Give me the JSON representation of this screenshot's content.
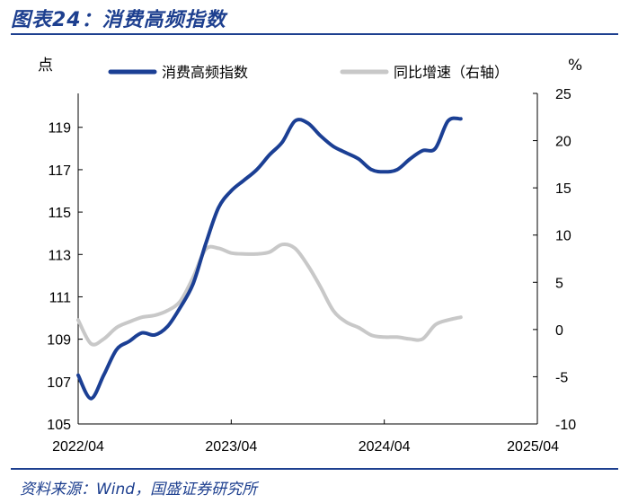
{
  "header": {
    "title": "图表24：消费高频指数"
  },
  "footer": {
    "source": "资料来源：Wind，国盛证券研究所"
  },
  "chart_data": {
    "type": "line",
    "y_left_unit": "点",
    "y_right_unit": "%",
    "y_left_range": [
      105,
      120.6
    ],
    "y_right_range": [
      -10,
      25
    ],
    "y_left_ticks": [
      "105",
      "107",
      "109",
      "111",
      "113",
      "115",
      "117",
      "119"
    ],
    "y_right_ticks": [
      "-10",
      "-5",
      "0",
      "5",
      "10",
      "15",
      "20",
      "25"
    ],
    "x_range": [
      "2022-04",
      "2025-04"
    ],
    "x_ticks": [
      "2022/04",
      "2023/04",
      "2024/04",
      "2025/04"
    ],
    "legend_position": "top",
    "series": [
      {
        "name": "消费高频指数",
        "axis": "left",
        "color": "#1b3f94",
        "points": [
          [
            "2022-04",
            107.3
          ],
          [
            "2022-05",
            106.2
          ],
          [
            "2022-06",
            107.3
          ],
          [
            "2022-07",
            108.5
          ],
          [
            "2022-08",
            108.9
          ],
          [
            "2022-09",
            109.3
          ],
          [
            "2022-10",
            109.2
          ],
          [
            "2022-11",
            109.6
          ],
          [
            "2022-12",
            110.5
          ],
          [
            "2023-01",
            111.6
          ],
          [
            "2023-02",
            113.5
          ],
          [
            "2023-03",
            115.2
          ],
          [
            "2023-04",
            116.0
          ],
          [
            "2023-05",
            116.5
          ],
          [
            "2023-06",
            117.0
          ],
          [
            "2023-07",
            117.7
          ],
          [
            "2023-08",
            118.3
          ],
          [
            "2023-09",
            119.3
          ],
          [
            "2023-10",
            119.2
          ],
          [
            "2023-11",
            118.6
          ],
          [
            "2023-12",
            118.1
          ],
          [
            "2024-01",
            117.8
          ],
          [
            "2024-02",
            117.5
          ],
          [
            "2024-03",
            117.0
          ],
          [
            "2024-04",
            116.9
          ],
          [
            "2024-05",
            117.0
          ],
          [
            "2024-06",
            117.5
          ],
          [
            "2024-07",
            117.9
          ],
          [
            "2024-08",
            118.0
          ],
          [
            "2024-09",
            119.3
          ],
          [
            "2024-10",
            119.4
          ]
        ]
      },
      {
        "name": "同比增速（右轴）",
        "axis": "right",
        "color": "#c8c8c8",
        "points": [
          [
            "2022-04",
            1.0
          ],
          [
            "2022-05",
            -1.5
          ],
          [
            "2022-06",
            -1.0
          ],
          [
            "2022-07",
            0.2
          ],
          [
            "2022-08",
            0.8
          ],
          [
            "2022-09",
            1.3
          ],
          [
            "2022-10",
            1.5
          ],
          [
            "2022-11",
            2.0
          ],
          [
            "2022-12",
            3.0
          ],
          [
            "2023-01",
            5.5
          ],
          [
            "2023-02",
            8.5
          ],
          [
            "2023-03",
            8.6
          ],
          [
            "2023-04",
            8.1
          ],
          [
            "2023-05",
            8.0
          ],
          [
            "2023-06",
            8.0
          ],
          [
            "2023-07",
            8.2
          ],
          [
            "2023-08",
            9.0
          ],
          [
            "2023-09",
            8.6
          ],
          [
            "2023-10",
            6.8
          ],
          [
            "2023-11",
            4.5
          ],
          [
            "2023-12",
            2.0
          ],
          [
            "2024-01",
            0.8
          ],
          [
            "2024-02",
            0.2
          ],
          [
            "2024-03",
            -0.6
          ],
          [
            "2024-04",
            -0.8
          ],
          [
            "2024-05",
            -0.8
          ],
          [
            "2024-06",
            -1.0
          ],
          [
            "2024-07",
            -1.0
          ],
          [
            "2024-08",
            0.5
          ],
          [
            "2024-09",
            1.0
          ],
          [
            "2024-10",
            1.3
          ]
        ]
      }
    ]
  }
}
